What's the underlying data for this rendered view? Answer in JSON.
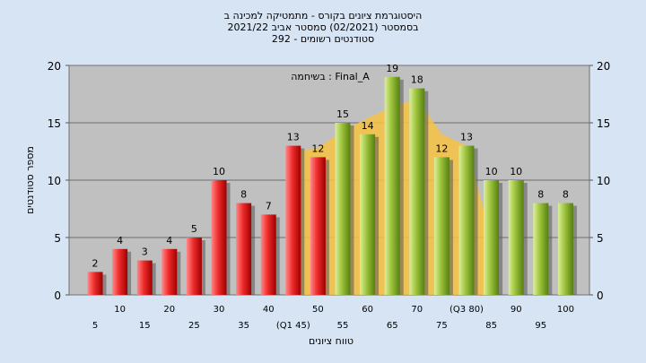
{
  "chart_data": {
    "type": "bar",
    "title_lines": [
      "היסטוגרמת ציונים בקורס - מתמטיקה למכינה ב",
      "בסמסטר (02/2021) סמסטר אביב 2021/22",
      "סטודנטים רשומים - 292"
    ],
    "legend": "בשיחמה : Final_A",
    "ylabel": "מספר סטודנטים",
    "xlabel": "טווח ציונים",
    "ylim": [
      0,
      20
    ],
    "yticks": [
      0,
      5,
      10,
      15,
      20
    ],
    "grid": true,
    "categories": [
      "5",
      "10",
      "15",
      "20",
      "25",
      "30",
      "35",
      "40",
      "(Q1 45)",
      "50",
      "55",
      "60",
      "65",
      "70",
      "75",
      "(Q3 80)",
      "85",
      "90",
      "95",
      "100"
    ],
    "values": [
      2,
      4,
      3,
      4,
      5,
      10,
      8,
      7,
      13,
      12,
      15,
      14,
      19,
      18,
      12,
      13,
      10,
      10,
      8,
      8
    ],
    "bar_colors": [
      "red",
      "red",
      "red",
      "red",
      "red",
      "red",
      "red",
      "red",
      "red",
      "red",
      "green",
      "green",
      "green",
      "green",
      "green",
      "green",
      "green",
      "green",
      "green",
      "green"
    ],
    "band_y": [
      null,
      null,
      null,
      null,
      null,
      null,
      null,
      null,
      12.5,
      12.8,
      14.3,
      15.4,
      16.4,
      17.1,
      14,
      13,
      5,
      null,
      null,
      null
    ],
    "colors": {
      "background": "#d7e4f4",
      "plot_bg": "#c0c0c0",
      "band": "#f7c242",
      "red_light": "#ff5a5a",
      "red_dark": "#a10000",
      "green_light": "#c0df6f",
      "green_dark": "#5c8a16"
    }
  }
}
